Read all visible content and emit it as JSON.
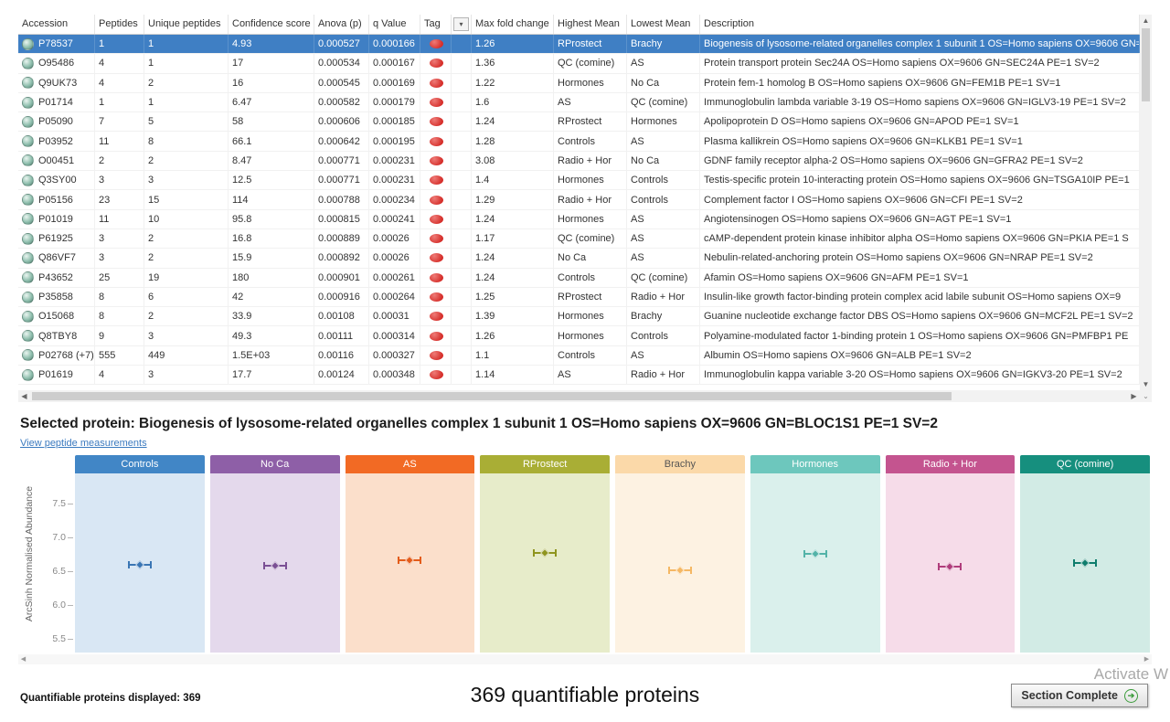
{
  "table": {
    "columns": [
      "Accession",
      "Peptides",
      "Unique peptides",
      "Confidence score",
      "Anova (p)",
      "q Value",
      "Tag",
      "",
      "Max fold change",
      "Highest Mean",
      "Lowest Mean",
      "Description"
    ],
    "tag_color": "#d6302c",
    "selected_row_color": "#3f7fc4",
    "rows": [
      {
        "selected": true,
        "accession": "P78537",
        "peptides": "1",
        "unique_peptides": "1",
        "confidence": "4.93",
        "anova": "0.000527",
        "q_value": "0.000166",
        "max_fold": "1.26",
        "highest_mean": "RProstect",
        "lowest_mean": "Brachy",
        "description": "Biogenesis of lysosome-related organelles complex 1 subunit 1 OS=Homo sapiens OX=9606 GN=BLOC1S1 PE=1 SV=2"
      },
      {
        "selected": false,
        "accession": "O95486",
        "peptides": "4",
        "unique_peptides": "1",
        "confidence": "17",
        "anova": "0.000534",
        "q_value": "0.000167",
        "max_fold": "1.36",
        "highest_mean": "QC (comine)",
        "lowest_mean": "AS",
        "description": "Protein transport protein Sec24A OS=Homo sapiens OX=9606 GN=SEC24A PE=1 SV=2"
      },
      {
        "selected": false,
        "accession": "Q9UK73",
        "peptides": "4",
        "unique_peptides": "2",
        "confidence": "16",
        "anova": "0.000545",
        "q_value": "0.000169",
        "max_fold": "1.22",
        "highest_mean": "Hormones",
        "lowest_mean": "No Ca",
        "description": "Protein fem-1 homolog B OS=Homo sapiens OX=9606 GN=FEM1B PE=1 SV=1"
      },
      {
        "selected": false,
        "accession": "P01714",
        "peptides": "1",
        "unique_peptides": "1",
        "confidence": "6.47",
        "anova": "0.000582",
        "q_value": "0.000179",
        "max_fold": "1.6",
        "highest_mean": "AS",
        "lowest_mean": "QC (comine)",
        "description": "Immunoglobulin lambda variable 3-19 OS=Homo sapiens OX=9606 GN=IGLV3-19 PE=1 SV=2"
      },
      {
        "selected": false,
        "accession": "P05090",
        "peptides": "7",
        "unique_peptides": "5",
        "confidence": "58",
        "anova": "0.000606",
        "q_value": "0.000185",
        "max_fold": "1.24",
        "highest_mean": "RProstect",
        "lowest_mean": "Hormones",
        "description": "Apolipoprotein D OS=Homo sapiens OX=9606 GN=APOD PE=1 SV=1"
      },
      {
        "selected": false,
        "accession": "P03952",
        "peptides": "11",
        "unique_peptides": "8",
        "confidence": "66.1",
        "anova": "0.000642",
        "q_value": "0.000195",
        "max_fold": "1.28",
        "highest_mean": "Controls",
        "lowest_mean": "AS",
        "description": "Plasma kallikrein OS=Homo sapiens OX=9606 GN=KLKB1 PE=1 SV=1"
      },
      {
        "selected": false,
        "accession": "O00451",
        "peptides": "2",
        "unique_peptides": "2",
        "confidence": "8.47",
        "anova": "0.000771",
        "q_value": "0.000231",
        "max_fold": "3.08",
        "highest_mean": "Radio + Hor",
        "lowest_mean": "No Ca",
        "description": "GDNF family receptor alpha-2 OS=Homo sapiens OX=9606 GN=GFRA2 PE=1 SV=2"
      },
      {
        "selected": false,
        "accession": "Q3SY00",
        "peptides": "3",
        "unique_peptides": "3",
        "confidence": "12.5",
        "anova": "0.000771",
        "q_value": "0.000231",
        "max_fold": "1.4",
        "highest_mean": "Hormones",
        "lowest_mean": "Controls",
        "description": "Testis-specific protein 10-interacting protein OS=Homo sapiens OX=9606 GN=TSGA10IP PE=1"
      },
      {
        "selected": false,
        "accession": "P05156",
        "peptides": "23",
        "unique_peptides": "15",
        "confidence": "114",
        "anova": "0.000788",
        "q_value": "0.000234",
        "max_fold": "1.29",
        "highest_mean": "Radio + Hor",
        "lowest_mean": "Controls",
        "description": "Complement factor I OS=Homo sapiens OX=9606 GN=CFI PE=1 SV=2"
      },
      {
        "selected": false,
        "accession": "P01019",
        "peptides": "11",
        "unique_peptides": "10",
        "confidence": "95.8",
        "anova": "0.000815",
        "q_value": "0.000241",
        "max_fold": "1.24",
        "highest_mean": "Hormones",
        "lowest_mean": "AS",
        "description": "Angiotensinogen OS=Homo sapiens OX=9606 GN=AGT PE=1 SV=1"
      },
      {
        "selected": false,
        "accession": "P61925",
        "peptides": "3",
        "unique_peptides": "2",
        "confidence": "16.8",
        "anova": "0.000889",
        "q_value": "0.00026",
        "max_fold": "1.17",
        "highest_mean": "QC (comine)",
        "lowest_mean": "AS",
        "description": "cAMP-dependent protein kinase inhibitor alpha OS=Homo sapiens OX=9606 GN=PKIA PE=1 S"
      },
      {
        "selected": false,
        "accession": "Q86VF7",
        "peptides": "3",
        "unique_peptides": "2",
        "confidence": "15.9",
        "anova": "0.000892",
        "q_value": "0.00026",
        "max_fold": "1.24",
        "highest_mean": "No Ca",
        "lowest_mean": "AS",
        "description": "Nebulin-related-anchoring protein OS=Homo sapiens OX=9606 GN=NRAP PE=1 SV=2"
      },
      {
        "selected": false,
        "accession": "P43652",
        "peptides": "25",
        "unique_peptides": "19",
        "confidence": "180",
        "anova": "0.000901",
        "q_value": "0.000261",
        "max_fold": "1.24",
        "highest_mean": "Controls",
        "lowest_mean": "QC (comine)",
        "description": "Afamin OS=Homo sapiens OX=9606 GN=AFM PE=1 SV=1"
      },
      {
        "selected": false,
        "accession": "P35858",
        "peptides": "8",
        "unique_peptides": "6",
        "confidence": "42",
        "anova": "0.000916",
        "q_value": "0.000264",
        "max_fold": "1.25",
        "highest_mean": "RProstect",
        "lowest_mean": "Radio + Hor",
        "description": "Insulin-like growth factor-binding protein complex acid labile subunit OS=Homo sapiens OX=9"
      },
      {
        "selected": false,
        "accession": "O15068",
        "peptides": "8",
        "unique_peptides": "2",
        "confidence": "33.9",
        "anova": "0.00108",
        "q_value": "0.00031",
        "max_fold": "1.39",
        "highest_mean": "Hormones",
        "lowest_mean": "Brachy",
        "description": "Guanine nucleotide exchange factor DBS OS=Homo sapiens OX=9606 GN=MCF2L PE=1 SV=2"
      },
      {
        "selected": false,
        "accession": "Q8TBY8",
        "peptides": "9",
        "unique_peptides": "3",
        "confidence": "49.3",
        "anova": "0.00111",
        "q_value": "0.000314",
        "max_fold": "1.26",
        "highest_mean": "Hormones",
        "lowest_mean": "Controls",
        "description": "Polyamine-modulated factor 1-binding protein 1 OS=Homo sapiens OX=9606 GN=PMFBP1 PE"
      },
      {
        "selected": false,
        "accession": "P02768 (+7)",
        "peptides": "555",
        "unique_peptides": "449",
        "confidence": "1.5E+03",
        "anova": "0.00116",
        "q_value": "0.000327",
        "max_fold": "1.1",
        "highest_mean": "Controls",
        "lowest_mean": "AS",
        "description": "Albumin OS=Homo sapiens OX=9606 GN=ALB PE=1 SV=2"
      },
      {
        "selected": false,
        "accession": "P01619",
        "peptides": "4",
        "unique_peptides": "3",
        "confidence": "17.7",
        "anova": "0.00124",
        "q_value": "0.000348",
        "max_fold": "1.14",
        "highest_mean": "AS",
        "lowest_mean": "Radio + Hor",
        "description": "Immunoglobulin kappa variable 3-20 OS=Homo sapiens OX=9606 GN=IGKV3-20 PE=1 SV=2"
      }
    ]
  },
  "selected_protein": {
    "text": "Selected protein: Biogenesis of lysosome-related organelles complex 1 subunit 1 OS=Homo sapiens OX=9606 GN=BLOC1S1 PE=1 SV=2",
    "link": "View peptide measurements"
  },
  "chart_data": {
    "type": "scatter",
    "title": "",
    "ylabel": "ArcSinh Normalised Abundance",
    "yticks": [
      7.5,
      7.0,
      6.5,
      6.0,
      5.5
    ],
    "ylim": [
      5.3,
      7.95
    ],
    "legend_position": "none",
    "grid": false,
    "groups": [
      {
        "label": "Controls",
        "value": 6.6,
        "header_color": "#4186c6",
        "body_color": "#d9e7f4",
        "marker_color": "#3a76b4",
        "text_color": "#ffffff"
      },
      {
        "label": "No Ca",
        "value": 6.58,
        "header_color": "#8e5fa7",
        "body_color": "#e4d9ec",
        "marker_color": "#7a4f94",
        "text_color": "#ffffff"
      },
      {
        "label": "AS",
        "value": 6.66,
        "header_color": "#f26a24",
        "body_color": "#fbdfcb",
        "marker_color": "#e35c1a",
        "text_color": "#ffffff"
      },
      {
        "label": "RProstect",
        "value": 6.77,
        "header_color": "#a9ae35",
        "body_color": "#e7ecca",
        "marker_color": "#8f951f",
        "text_color": "#ffffff"
      },
      {
        "label": "Brachy",
        "value": 6.52,
        "header_color": "#fbd9a9",
        "body_color": "#fdf2e2",
        "marker_color": "#f5b864",
        "text_color": "#555555"
      },
      {
        "label": "Hormones",
        "value": 6.76,
        "header_color": "#6dc7bd",
        "body_color": "#daf0ec",
        "marker_color": "#53b3a8",
        "text_color": "#ffffff"
      },
      {
        "label": "Radio + Hor",
        "value": 6.57,
        "header_color": "#c4548f",
        "body_color": "#f6dce9",
        "marker_color": "#b03d7c",
        "text_color": "#ffffff"
      },
      {
        "label": "QC (comine)",
        "value": 6.62,
        "header_color": "#168f7e",
        "body_color": "#d2ebe5",
        "marker_color": "#0e7d6d",
        "text_color": "#ffffff"
      }
    ]
  },
  "footer": {
    "quantifiable_label": "Quantifiable proteins displayed:",
    "quantifiable_value": "369",
    "center_text": "369 quantifiable proteins",
    "watermark": "Activate W",
    "section_complete": "Section Complete"
  }
}
